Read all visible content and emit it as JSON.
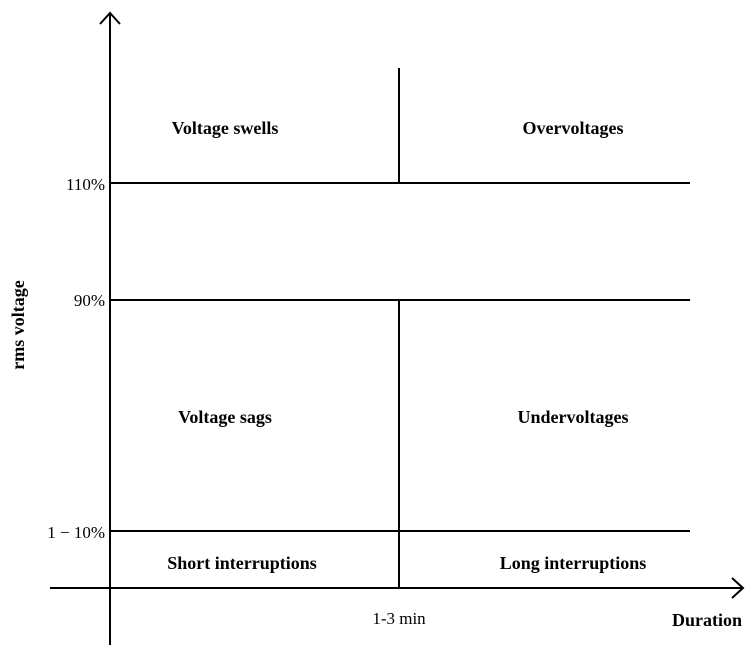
{
  "axes": {
    "y_label": "rms voltage",
    "x_label": "Duration"
  },
  "y_levels": [
    "110%",
    "90%",
    "1 − 10%"
  ],
  "x_levels": [
    "1-3 min"
  ],
  "regions": [
    {
      "label": "Voltage swells"
    },
    {
      "label": "Overvoltages"
    },
    {
      "label": "Voltage sags"
    },
    {
      "label": "Undervoltages"
    },
    {
      "label": "Short interruptions"
    },
    {
      "label": "Long interruptions"
    }
  ]
}
